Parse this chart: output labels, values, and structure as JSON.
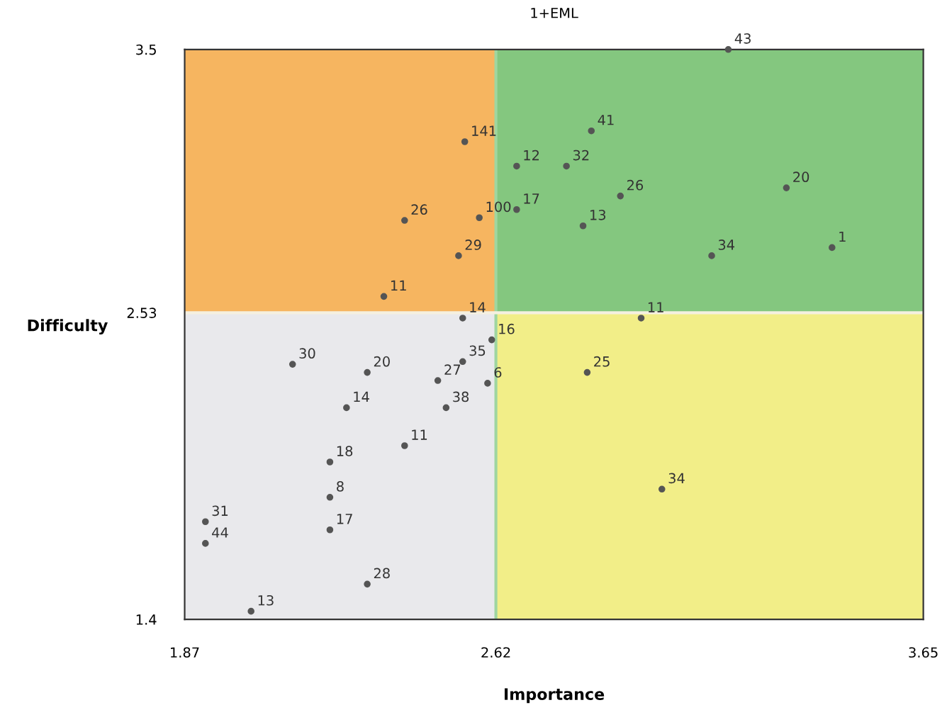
{
  "chart_data": {
    "type": "scatter",
    "title": "1+EML",
    "xlabel": "Importance",
    "ylabel": "Difficulty",
    "xlim": [
      1.87,
      3.65
    ],
    "ylim": [
      1.4,
      3.5
    ],
    "xticks": [
      1.87,
      2.62,
      3.65
    ],
    "yticks": [
      1.4,
      2.53,
      3.5
    ],
    "ref_lines": [
      {
        "axis": "x",
        "value": 2.62,
        "color": "#9fd6a0"
      },
      {
        "axis": "y",
        "value": 2.53,
        "color": "#f5f0e0"
      }
    ],
    "grid": false,
    "legend": false,
    "marker": "circle",
    "series": [
      {
        "color": "#555555",
        "x": [
          2.545,
          2.4,
          2.58,
          2.53,
          2.35,
          2.85,
          2.67,
          2.79,
          2.92,
          2.67,
          2.83,
          3.32,
          3.14,
          3.43,
          3.18,
          2.54,
          2.61,
          2.6,
          2.13,
          2.31,
          2.54,
          2.48,
          2.5,
          2.26,
          2.4,
          2.22,
          2.22,
          2.22,
          1.92,
          1.92,
          2.31,
          2.03,
          2.97,
          2.84,
          3.02
        ],
        "values": [
          3.16,
          2.87,
          2.88,
          2.74,
          2.59,
          3.2,
          3.07,
          3.07,
          2.96,
          2.91,
          2.85,
          2.99,
          2.74,
          2.77,
          3.5,
          2.51,
          2.43,
          2.27,
          2.34,
          2.31,
          2.35,
          2.28,
          2.18,
          2.18,
          2.04,
          1.98,
          1.85,
          1.73,
          1.76,
          1.68,
          1.53,
          1.43,
          2.51,
          2.31,
          1.88
        ]
      }
    ],
    "annotations": [
      {
        "text": "141",
        "x": 2.545,
        "y": 3.16
      },
      {
        "text": "26",
        "x": 2.4,
        "y": 2.87
      },
      {
        "text": "100",
        "x": 2.58,
        "y": 2.88
      },
      {
        "text": "29",
        "x": 2.53,
        "y": 2.74
      },
      {
        "text": "11",
        "x": 2.35,
        "y": 2.59
      },
      {
        "text": "41",
        "x": 2.85,
        "y": 3.2
      },
      {
        "text": "12",
        "x": 2.67,
        "y": 3.07
      },
      {
        "text": "32",
        "x": 2.79,
        "y": 3.07
      },
      {
        "text": "26",
        "x": 2.92,
        "y": 2.96
      },
      {
        "text": "17",
        "x": 2.67,
        "y": 2.91
      },
      {
        "text": "13",
        "x": 2.83,
        "y": 2.85
      },
      {
        "text": "20",
        "x": 3.32,
        "y": 2.99
      },
      {
        "text": "34",
        "x": 3.14,
        "y": 2.74
      },
      {
        "text": "1",
        "x": 3.43,
        "y": 2.77
      },
      {
        "text": "43",
        "x": 3.18,
        "y": 3.5
      },
      {
        "text": "14",
        "x": 2.54,
        "y": 2.51
      },
      {
        "text": "16",
        "x": 2.61,
        "y": 2.43
      },
      {
        "text": "6",
        "x": 2.6,
        "y": 2.27
      },
      {
        "text": "30",
        "x": 2.13,
        "y": 2.34
      },
      {
        "text": "20",
        "x": 2.31,
        "y": 2.31
      },
      {
        "text": "35",
        "x": 2.54,
        "y": 2.35
      },
      {
        "text": "27",
        "x": 2.48,
        "y": 2.28
      },
      {
        "text": "38",
        "x": 2.5,
        "y": 2.18
      },
      {
        "text": "14",
        "x": 2.26,
        "y": 2.18
      },
      {
        "text": "11",
        "x": 2.4,
        "y": 2.04
      },
      {
        "text": "18",
        "x": 2.22,
        "y": 1.98
      },
      {
        "text": "8",
        "x": 2.22,
        "y": 1.85
      },
      {
        "text": "17",
        "x": 2.22,
        "y": 1.73
      },
      {
        "text": "31",
        "x": 1.92,
        "y": 1.76
      },
      {
        "text": "44",
        "x": 1.92,
        "y": 1.68
      },
      {
        "text": "28",
        "x": 2.31,
        "y": 1.53
      },
      {
        "text": "13",
        "x": 2.03,
        "y": 1.43
      },
      {
        "text": "11",
        "x": 2.97,
        "y": 2.51
      },
      {
        "text": "25",
        "x": 2.84,
        "y": 2.31
      },
      {
        "text": "34",
        "x": 3.02,
        "y": 1.88
      }
    ]
  }
}
